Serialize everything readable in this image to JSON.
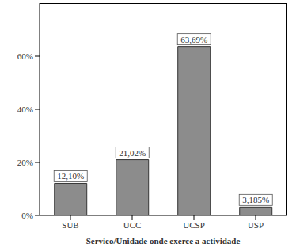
{
  "chart_data": {
    "type": "bar",
    "x_label": "Serviço/Unidade onde exerce a actividade",
    "categories": [
      "SUB",
      "UCC",
      "UCSP",
      "USP"
    ],
    "values": [
      12.1,
      21.02,
      63.69,
      3.185
    ],
    "value_labels": [
      "12,10%",
      "21,02%",
      "63,69%",
      "3,185%"
    ],
    "data_labels": true,
    "color": "#8c8c8c",
    "ylim": [
      0,
      80
    ],
    "yticks": [
      {
        "value": 0,
        "label": "0%"
      },
      {
        "value": 20,
        "label": "20%"
      },
      {
        "value": 40,
        "label": "40%"
      },
      {
        "value": 60,
        "label": "60%"
      }
    ],
    "grid": false
  }
}
